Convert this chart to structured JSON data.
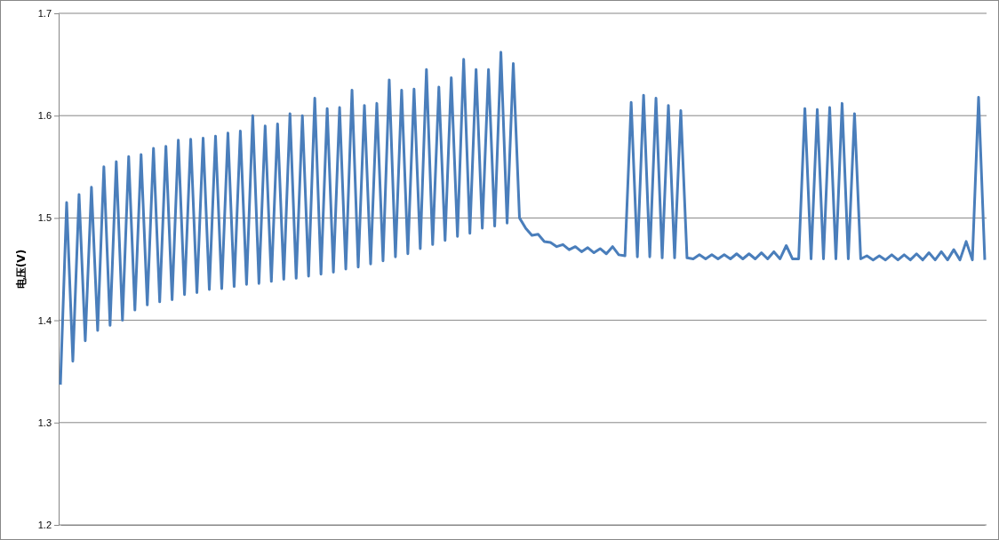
{
  "chart_data": {
    "type": "line",
    "ylabel": "电压(V)",
    "categories": [
      null,
      null,
      null,
      null,
      null,
      null,
      null,
      null,
      null,
      null,
      null,
      null,
      null,
      null,
      null,
      null,
      null,
      null,
      null,
      null,
      null,
      null,
      null,
      null,
      null,
      null,
      null,
      null,
      null,
      null,
      null,
      null,
      null,
      null,
      null,
      null,
      null,
      null,
      null,
      null,
      null,
      null,
      null,
      null,
      null,
      null,
      null,
      null,
      null,
      null,
      null,
      null,
      null,
      null,
      null,
      null,
      null,
      null,
      null,
      null,
      null,
      null,
      null,
      null,
      null,
      null,
      null,
      null,
      null,
      null,
      null,
      null,
      null,
      null,
      null,
      null,
      null,
      null,
      null,
      null,
      null,
      null,
      null,
      null,
      null,
      null,
      null,
      null,
      null,
      null,
      null,
      null,
      null,
      null,
      null,
      null,
      null,
      null,
      null,
      null,
      null,
      null,
      null,
      null,
      null,
      null,
      null,
      null,
      null,
      null,
      null,
      null,
      null,
      null,
      null,
      null,
      null,
      null,
      null,
      null,
      null,
      null,
      null,
      null,
      null,
      null,
      null,
      null,
      null,
      null,
      null,
      null,
      null,
      null,
      null,
      null,
      null,
      null,
      null,
      null,
      null,
      null,
      null,
      null,
      null,
      null,
      null,
      null,
      null,
      null
    ],
    "series": [
      {
        "color": "#4a7ebb",
        "values": [
          1.337,
          1.515,
          1.36,
          1.523,
          1.38,
          1.53,
          1.39,
          1.55,
          1.395,
          1.555,
          1.4,
          1.56,
          1.41,
          1.562,
          1.415,
          1.568,
          1.418,
          1.57,
          1.42,
          1.576,
          1.425,
          1.577,
          1.427,
          1.578,
          1.43,
          1.58,
          1.431,
          1.583,
          1.433,
          1.585,
          1.435,
          1.6,
          1.436,
          1.59,
          1.438,
          1.592,
          1.44,
          1.602,
          1.441,
          1.6,
          1.443,
          1.617,
          1.445,
          1.607,
          1.447,
          1.608,
          1.45,
          1.625,
          1.452,
          1.61,
          1.455,
          1.612,
          1.458,
          1.635,
          1.462,
          1.625,
          1.465,
          1.626,
          1.47,
          1.645,
          1.474,
          1.628,
          1.478,
          1.637,
          1.482,
          1.655,
          1.485,
          1.645,
          1.49,
          1.645,
          1.492,
          1.662,
          1.495,
          1.651,
          1.5,
          1.49,
          1.483,
          1.484,
          1.477,
          1.476,
          1.472,
          1.474,
          1.469,
          1.472,
          1.467,
          1.471,
          1.466,
          1.47,
          1.465,
          1.472,
          1.464,
          1.463,
          1.613,
          1.462,
          1.62,
          1.462,
          1.617,
          1.461,
          1.61,
          1.461,
          1.605,
          1.461,
          1.46,
          1.464,
          1.46,
          1.464,
          1.46,
          1.464,
          1.46,
          1.465,
          1.46,
          1.465,
          1.46,
          1.466,
          1.46,
          1.467,
          1.46,
          1.473,
          1.46,
          1.46,
          1.607,
          1.46,
          1.606,
          1.46,
          1.608,
          1.46,
          1.612,
          1.46,
          1.602,
          1.46,
          1.463,
          1.459,
          1.463,
          1.459,
          1.464,
          1.459,
          1.464,
          1.459,
          1.465,
          1.459,
          1.466,
          1.459,
          1.467,
          1.459,
          1.469,
          1.459,
          1.477,
          1.459,
          1.618,
          1.459
        ]
      }
    ],
    "ylim": [
      1.2,
      1.7
    ],
    "yticks": [
      1.2,
      1.3,
      1.4,
      1.5,
      1.6,
      1.7
    ],
    "grid": "y",
    "tick_labels": "y",
    "marker": "none",
    "line_style": "solid"
  }
}
